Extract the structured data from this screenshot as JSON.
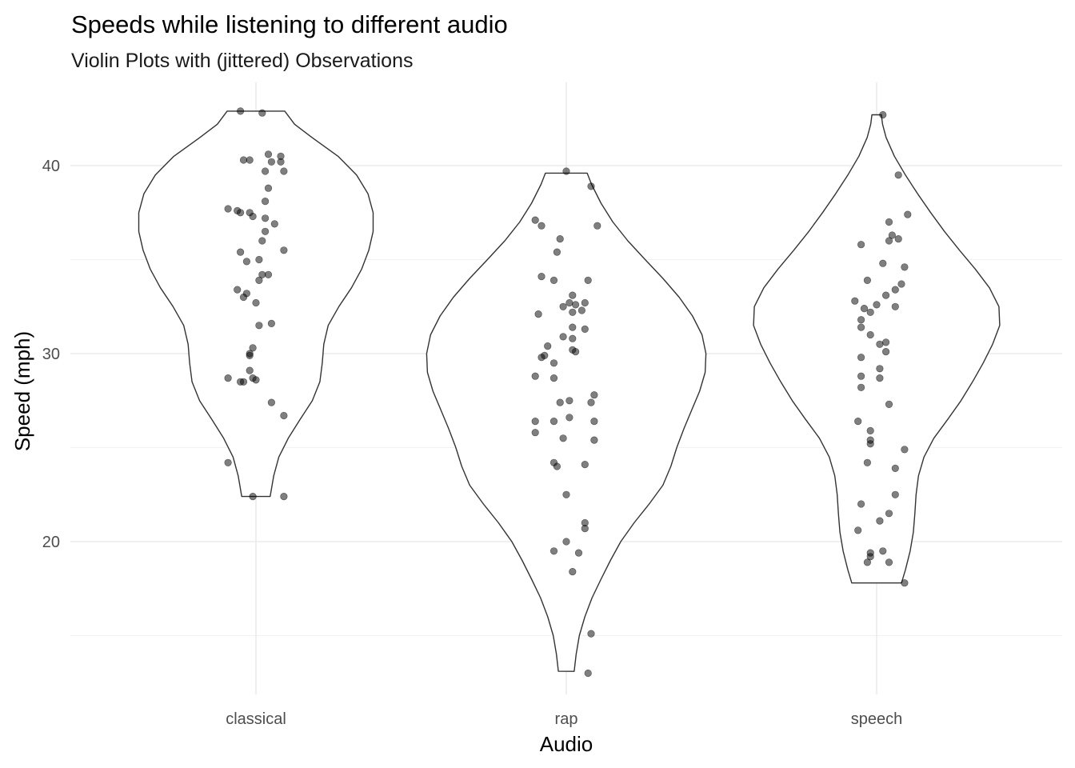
{
  "chart_data": {
    "type": "violin",
    "title": "Speeds while listening to different audio",
    "subtitle": "Violin Plots with (jittered) Observations",
    "xlabel": "Audio",
    "ylabel": "Speed (mph)",
    "categories": [
      "classical",
      "rap",
      "speech"
    ],
    "ylim": [
      11.5,
      44.0
    ],
    "yticks": [
      20,
      30,
      40
    ],
    "grid": true,
    "colors": {
      "point": "#000000",
      "outline": "#333333",
      "grid": "#ebebeb"
    },
    "groups": [
      {
        "name": "classical",
        "range": [
          22.4,
          42.9
        ],
        "density": [
          [
            22.4,
            0.36
          ],
          [
            23.5,
            0.45
          ],
          [
            24.5,
            0.58
          ],
          [
            25.5,
            0.82
          ],
          [
            26.5,
            1.12
          ],
          [
            27.5,
            1.43
          ],
          [
            28.5,
            1.62
          ],
          [
            29.5,
            1.68
          ],
          [
            30.5,
            1.72
          ],
          [
            31.5,
            1.83
          ],
          [
            32.5,
            2.1
          ],
          [
            33.5,
            2.42
          ],
          [
            34.5,
            2.68
          ],
          [
            35.5,
            2.86
          ],
          [
            36.5,
            2.97
          ],
          [
            37.5,
            2.97
          ],
          [
            38.5,
            2.84
          ],
          [
            39.5,
            2.55
          ],
          [
            40.5,
            2.08
          ],
          [
            41.5,
            1.42
          ],
          [
            42.2,
            0.98
          ],
          [
            42.9,
            0.73
          ]
        ],
        "points": [
          [
            -0.05,
            42.9
          ],
          [
            0.02,
            42.8
          ],
          [
            0.04,
            40.6
          ],
          [
            0.08,
            40.5
          ],
          [
            -0.04,
            40.3
          ],
          [
            -0.02,
            40.3
          ],
          [
            0.08,
            40.2
          ],
          [
            0.05,
            40.2
          ],
          [
            0.03,
            39.7
          ],
          [
            0.09,
            39.7
          ],
          [
            0.04,
            38.8
          ],
          [
            0.03,
            38.1
          ],
          [
            -0.09,
            37.7
          ],
          [
            -0.06,
            37.6
          ],
          [
            -0.05,
            37.5
          ],
          [
            -0.02,
            37.5
          ],
          [
            -0.01,
            37.3
          ],
          [
            0.03,
            37.2
          ],
          [
            0.06,
            36.9
          ],
          [
            0.03,
            36.5
          ],
          [
            0.02,
            36.0
          ],
          [
            0.09,
            35.5
          ],
          [
            -0.05,
            35.4
          ],
          [
            0.01,
            35.0
          ],
          [
            -0.03,
            34.9
          ],
          [
            0.04,
            34.2
          ],
          [
            0.02,
            34.2
          ],
          [
            0.01,
            33.9
          ],
          [
            -0.06,
            33.4
          ],
          [
            -0.03,
            33.2
          ],
          [
            -0.04,
            33.0
          ],
          [
            0.0,
            32.7
          ],
          [
            0.01,
            31.5
          ],
          [
            0.05,
            31.6
          ],
          [
            -0.01,
            30.3
          ],
          [
            -0.02,
            30.0
          ],
          [
            -0.02,
            29.9
          ],
          [
            -0.02,
            29.1
          ],
          [
            -0.09,
            28.7
          ],
          [
            -0.01,
            28.7
          ],
          [
            0.0,
            28.6
          ],
          [
            -0.05,
            28.5
          ],
          [
            -0.04,
            28.5
          ],
          [
            0.05,
            27.4
          ],
          [
            0.09,
            26.7
          ],
          [
            -0.09,
            24.2
          ],
          [
            -0.01,
            22.4
          ],
          [
            0.09,
            22.4
          ]
        ]
      },
      {
        "name": "rap",
        "range": [
          13.1,
          39.6
        ],
        "density": [
          [
            13.1,
            0.2
          ],
          [
            14.0,
            0.25
          ],
          [
            15.0,
            0.33
          ],
          [
            16.0,
            0.47
          ],
          [
            17.0,
            0.65
          ],
          [
            18.0,
            0.88
          ],
          [
            19.0,
            1.12
          ],
          [
            20.0,
            1.38
          ],
          [
            21.0,
            1.72
          ],
          [
            22.0,
            2.1
          ],
          [
            23.0,
            2.45
          ],
          [
            24.0,
            2.65
          ],
          [
            25.0,
            2.8
          ],
          [
            26.0,
            2.98
          ],
          [
            27.0,
            3.18
          ],
          [
            28.0,
            3.38
          ],
          [
            29.0,
            3.52
          ],
          [
            30.0,
            3.54
          ],
          [
            31.0,
            3.44
          ],
          [
            32.0,
            3.2
          ],
          [
            33.0,
            2.86
          ],
          [
            34.0,
            2.45
          ],
          [
            35.0,
            2.0
          ],
          [
            36.0,
            1.56
          ],
          [
            37.0,
            1.18
          ],
          [
            38.0,
            0.88
          ],
          [
            39.0,
            0.64
          ],
          [
            39.6,
            0.53
          ]
        ],
        "points": [
          [
            0.0,
            39.7
          ],
          [
            0.08,
            38.9
          ],
          [
            0.1,
            36.8
          ],
          [
            -0.1,
            37.1
          ],
          [
            -0.08,
            36.8
          ],
          [
            -0.02,
            36.1
          ],
          [
            -0.03,
            35.4
          ],
          [
            -0.08,
            34.1
          ],
          [
            -0.04,
            33.9
          ],
          [
            0.07,
            33.9
          ],
          [
            0.02,
            33.1
          ],
          [
            0.01,
            32.7
          ],
          [
            0.03,
            32.6
          ],
          [
            0.06,
            32.7
          ],
          [
            -0.01,
            32.5
          ],
          [
            0.05,
            32.3
          ],
          [
            -0.09,
            32.1
          ],
          [
            0.02,
            32.2
          ],
          [
            0.02,
            31.4
          ],
          [
            0.06,
            31.3
          ],
          [
            -0.01,
            30.9
          ],
          [
            0.02,
            30.8
          ],
          [
            -0.06,
            30.4
          ],
          [
            -0.07,
            29.9
          ],
          [
            0.02,
            30.2
          ],
          [
            0.03,
            30.1
          ],
          [
            -0.08,
            29.8
          ],
          [
            -0.04,
            29.5
          ],
          [
            -0.1,
            28.8
          ],
          [
            -0.04,
            28.7
          ],
          [
            0.09,
            27.8
          ],
          [
            0.01,
            27.5
          ],
          [
            -0.02,
            27.4
          ],
          [
            0.08,
            27.4
          ],
          [
            -0.1,
            26.4
          ],
          [
            -0.04,
            26.4
          ],
          [
            0.01,
            26.6
          ],
          [
            0.09,
            26.4
          ],
          [
            -0.1,
            25.8
          ],
          [
            -0.01,
            25.5
          ],
          [
            0.09,
            25.4
          ],
          [
            -0.04,
            24.2
          ],
          [
            -0.03,
            24.0
          ],
          [
            0.06,
            24.1
          ],
          [
            0.0,
            22.5
          ],
          [
            0.06,
            21.0
          ],
          [
            0.06,
            20.7
          ],
          [
            0.0,
            20.0
          ],
          [
            -0.04,
            19.5
          ],
          [
            0.04,
            19.4
          ],
          [
            0.02,
            18.4
          ],
          [
            0.08,
            15.1
          ],
          [
            0.07,
            13.0
          ]
        ]
      },
      {
        "name": "speech",
        "range": [
          17.8,
          42.7
        ],
        "density": [
          [
            17.8,
            0.63
          ],
          [
            18.5,
            0.73
          ],
          [
            19.5,
            0.85
          ],
          [
            20.5,
            0.93
          ],
          [
            21.5,
            0.97
          ],
          [
            22.5,
            1.0
          ],
          [
            23.5,
            1.06
          ],
          [
            24.5,
            1.2
          ],
          [
            25.5,
            1.45
          ],
          [
            26.5,
            1.8
          ],
          [
            27.5,
            2.14
          ],
          [
            28.5,
            2.43
          ],
          [
            29.5,
            2.7
          ],
          [
            30.5,
            2.94
          ],
          [
            31.5,
            3.12
          ],
          [
            32.5,
            3.1
          ],
          [
            33.5,
            2.86
          ],
          [
            34.5,
            2.5
          ],
          [
            35.5,
            2.1
          ],
          [
            36.5,
            1.72
          ],
          [
            37.5,
            1.37
          ],
          [
            38.5,
            1.04
          ],
          [
            39.5,
            0.73
          ],
          [
            40.5,
            0.45
          ],
          [
            41.5,
            0.24
          ],
          [
            42.2,
            0.15
          ],
          [
            42.7,
            0.12
          ]
        ],
        "points": [
          [
            0.02,
            42.7
          ],
          [
            0.07,
            39.5
          ],
          [
            0.1,
            37.4
          ],
          [
            0.04,
            37.0
          ],
          [
            0.05,
            36.3
          ],
          [
            0.04,
            36.0
          ],
          [
            0.07,
            36.1
          ],
          [
            -0.05,
            35.8
          ],
          [
            0.02,
            34.8
          ],
          [
            0.09,
            34.6
          ],
          [
            0.08,
            33.7
          ],
          [
            -0.03,
            33.9
          ],
          [
            0.06,
            33.4
          ],
          [
            0.03,
            33.1
          ],
          [
            -0.07,
            32.8
          ],
          [
            0.0,
            32.6
          ],
          [
            0.06,
            32.5
          ],
          [
            -0.02,
            32.2
          ],
          [
            -0.04,
            32.4
          ],
          [
            -0.05,
            31.8
          ],
          [
            -0.05,
            31.4
          ],
          [
            -0.02,
            31.0
          ],
          [
            0.01,
            30.5
          ],
          [
            0.03,
            30.6
          ],
          [
            0.03,
            30.1
          ],
          [
            -0.05,
            29.8
          ],
          [
            0.01,
            29.2
          ],
          [
            -0.05,
            28.8
          ],
          [
            0.01,
            28.7
          ],
          [
            -0.05,
            28.2
          ],
          [
            0.04,
            27.3
          ],
          [
            -0.06,
            26.4
          ],
          [
            -0.02,
            25.9
          ],
          [
            -0.02,
            25.4
          ],
          [
            -0.02,
            25.2
          ],
          [
            0.09,
            24.9
          ],
          [
            -0.03,
            24.2
          ],
          [
            0.06,
            23.9
          ],
          [
            0.06,
            22.5
          ],
          [
            -0.05,
            22.0
          ],
          [
            0.04,
            21.5
          ],
          [
            0.01,
            21.1
          ],
          [
            -0.06,
            20.6
          ],
          [
            0.02,
            19.5
          ],
          [
            -0.02,
            19.4
          ],
          [
            -0.02,
            19.2
          ],
          [
            -0.03,
            18.9
          ],
          [
            0.04,
            18.9
          ],
          [
            0.09,
            17.8
          ]
        ]
      }
    ]
  }
}
